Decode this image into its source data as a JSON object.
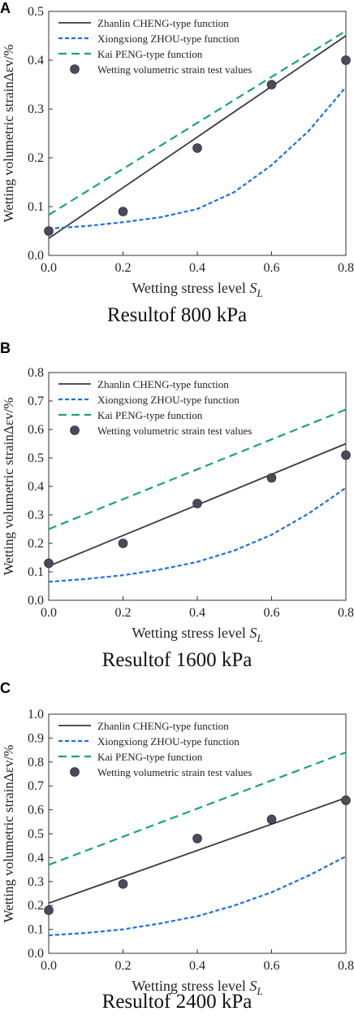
{
  "figure": {
    "panels": [
      {
        "letter": "A",
        "caption": "Resultof 800 kPa"
      },
      {
        "letter": "B",
        "caption": "Resultof 1600 kPa"
      },
      {
        "letter": "C",
        "caption": "Resultof 2400 kPa"
      }
    ]
  },
  "chart_data": [
    {
      "type": "line",
      "title": "",
      "xlabel": "Wetting stress level S_L",
      "ylabel": "Wetting volumetric strainΔεv/%",
      "xlim": [
        0,
        0.8
      ],
      "ylim": [
        0,
        0.5
      ],
      "x_ticks": [
        "0.0",
        "0.2",
        "0.4",
        "0.6",
        "0.8"
      ],
      "y_ticks": [
        "0.0",
        "0.1",
        "0.2",
        "0.3",
        "0.4",
        "0.5"
      ],
      "legend_position": "top-left",
      "series": [
        {
          "name": "Zhanlin CHENG-type function",
          "style": "solid",
          "color": "#3a3a3a",
          "x": [
            0,
            0.8
          ],
          "y": [
            0.035,
            0.45
          ]
        },
        {
          "name": "Xiongxiong ZHOU-type function",
          "style": "dotted",
          "color": "#1f6fe0",
          "x": [
            0,
            0.1,
            0.2,
            0.3,
            0.4,
            0.5,
            0.6,
            0.7,
            0.8
          ],
          "y": [
            0.055,
            0.06,
            0.068,
            0.078,
            0.095,
            0.13,
            0.185,
            0.255,
            0.345
          ]
        },
        {
          "name": "Kai PENG-type function",
          "style": "dashed",
          "color": "#1aa37a",
          "x": [
            0,
            0.8
          ],
          "y": [
            0.083,
            0.46
          ]
        },
        {
          "name": "Wetting volumetric strain test values",
          "style": "points",
          "color": "#4a4a5c",
          "x": [
            0,
            0.2,
            0.4,
            0.6,
            0.8
          ],
          "y": [
            0.05,
            0.09,
            0.22,
            0.35,
            0.4
          ]
        }
      ]
    },
    {
      "type": "line",
      "title": "",
      "xlabel": "Wetting stress level S_L",
      "ylabel": "Wetting volumetric strainΔεv/%",
      "xlim": [
        0,
        0.8
      ],
      "ylim": [
        0,
        0.8
      ],
      "x_ticks": [
        "0.0",
        "0.2",
        "0.4",
        "0.6",
        "0.8"
      ],
      "y_ticks": [
        "0.0",
        "0.1",
        "0.2",
        "0.3",
        "0.4",
        "0.5",
        "0.6",
        "0.7",
        "0.8"
      ],
      "legend_position": "top-left",
      "series": [
        {
          "name": "Zhanlin CHENG-type function",
          "style": "solid",
          "color": "#3a3a3a",
          "x": [
            0,
            0.8
          ],
          "y": [
            0.12,
            0.55
          ]
        },
        {
          "name": "Xiongxiong ZHOU-type function",
          "style": "dotted",
          "color": "#1f6fe0",
          "x": [
            0,
            0.1,
            0.2,
            0.3,
            0.4,
            0.5,
            0.6,
            0.7,
            0.8
          ],
          "y": [
            0.065,
            0.075,
            0.088,
            0.108,
            0.135,
            0.175,
            0.23,
            0.305,
            0.395
          ]
        },
        {
          "name": "Kai PENG-type function",
          "style": "dashed",
          "color": "#1aa37a",
          "x": [
            0,
            0.8
          ],
          "y": [
            0.25,
            0.67
          ]
        },
        {
          "name": "Wetting volumetric strain test values",
          "style": "points",
          "color": "#4a4a5c",
          "x": [
            0,
            0.2,
            0.4,
            0.6,
            0.8
          ],
          "y": [
            0.13,
            0.2,
            0.34,
            0.43,
            0.51
          ]
        }
      ]
    },
    {
      "type": "line",
      "title": "",
      "xlabel": "Wetting stress level S_L",
      "ylabel": "Wetting volumetric strainΔεv/%",
      "xlim": [
        0,
        0.8
      ],
      "ylim": [
        0,
        1.0
      ],
      "x_ticks": [
        "0.0",
        "0.2",
        "0.4",
        "0.6",
        "0.8"
      ],
      "y_ticks": [
        "0.0",
        "0.1",
        "0.2",
        "0.3",
        "0.4",
        "0.5",
        "0.6",
        "0.7",
        "0.8",
        "0.9",
        "1.0"
      ],
      "legend_position": "top-left",
      "series": [
        {
          "name": "Zhanlin CHENG-type function",
          "style": "solid",
          "color": "#3a3a3a",
          "x": [
            0,
            0.8
          ],
          "y": [
            0.21,
            0.65
          ]
        },
        {
          "name": "Xiongxiong ZHOU-type function",
          "style": "dotted",
          "color": "#1f6fe0",
          "x": [
            0,
            0.1,
            0.2,
            0.3,
            0.4,
            0.5,
            0.6,
            0.7,
            0.8
          ],
          "y": [
            0.075,
            0.085,
            0.1,
            0.125,
            0.155,
            0.2,
            0.255,
            0.325,
            0.405
          ]
        },
        {
          "name": "Kai PENG-type function",
          "style": "dashed",
          "color": "#1aa37a",
          "x": [
            0,
            0.8
          ],
          "y": [
            0.37,
            0.84
          ]
        },
        {
          "name": "Wetting volumetric strain test values",
          "style": "points",
          "color": "#4a4a5c",
          "x": [
            0,
            0.2,
            0.4,
            0.6,
            0.8
          ],
          "y": [
            0.18,
            0.29,
            0.48,
            0.56,
            0.64
          ]
        }
      ]
    }
  ]
}
